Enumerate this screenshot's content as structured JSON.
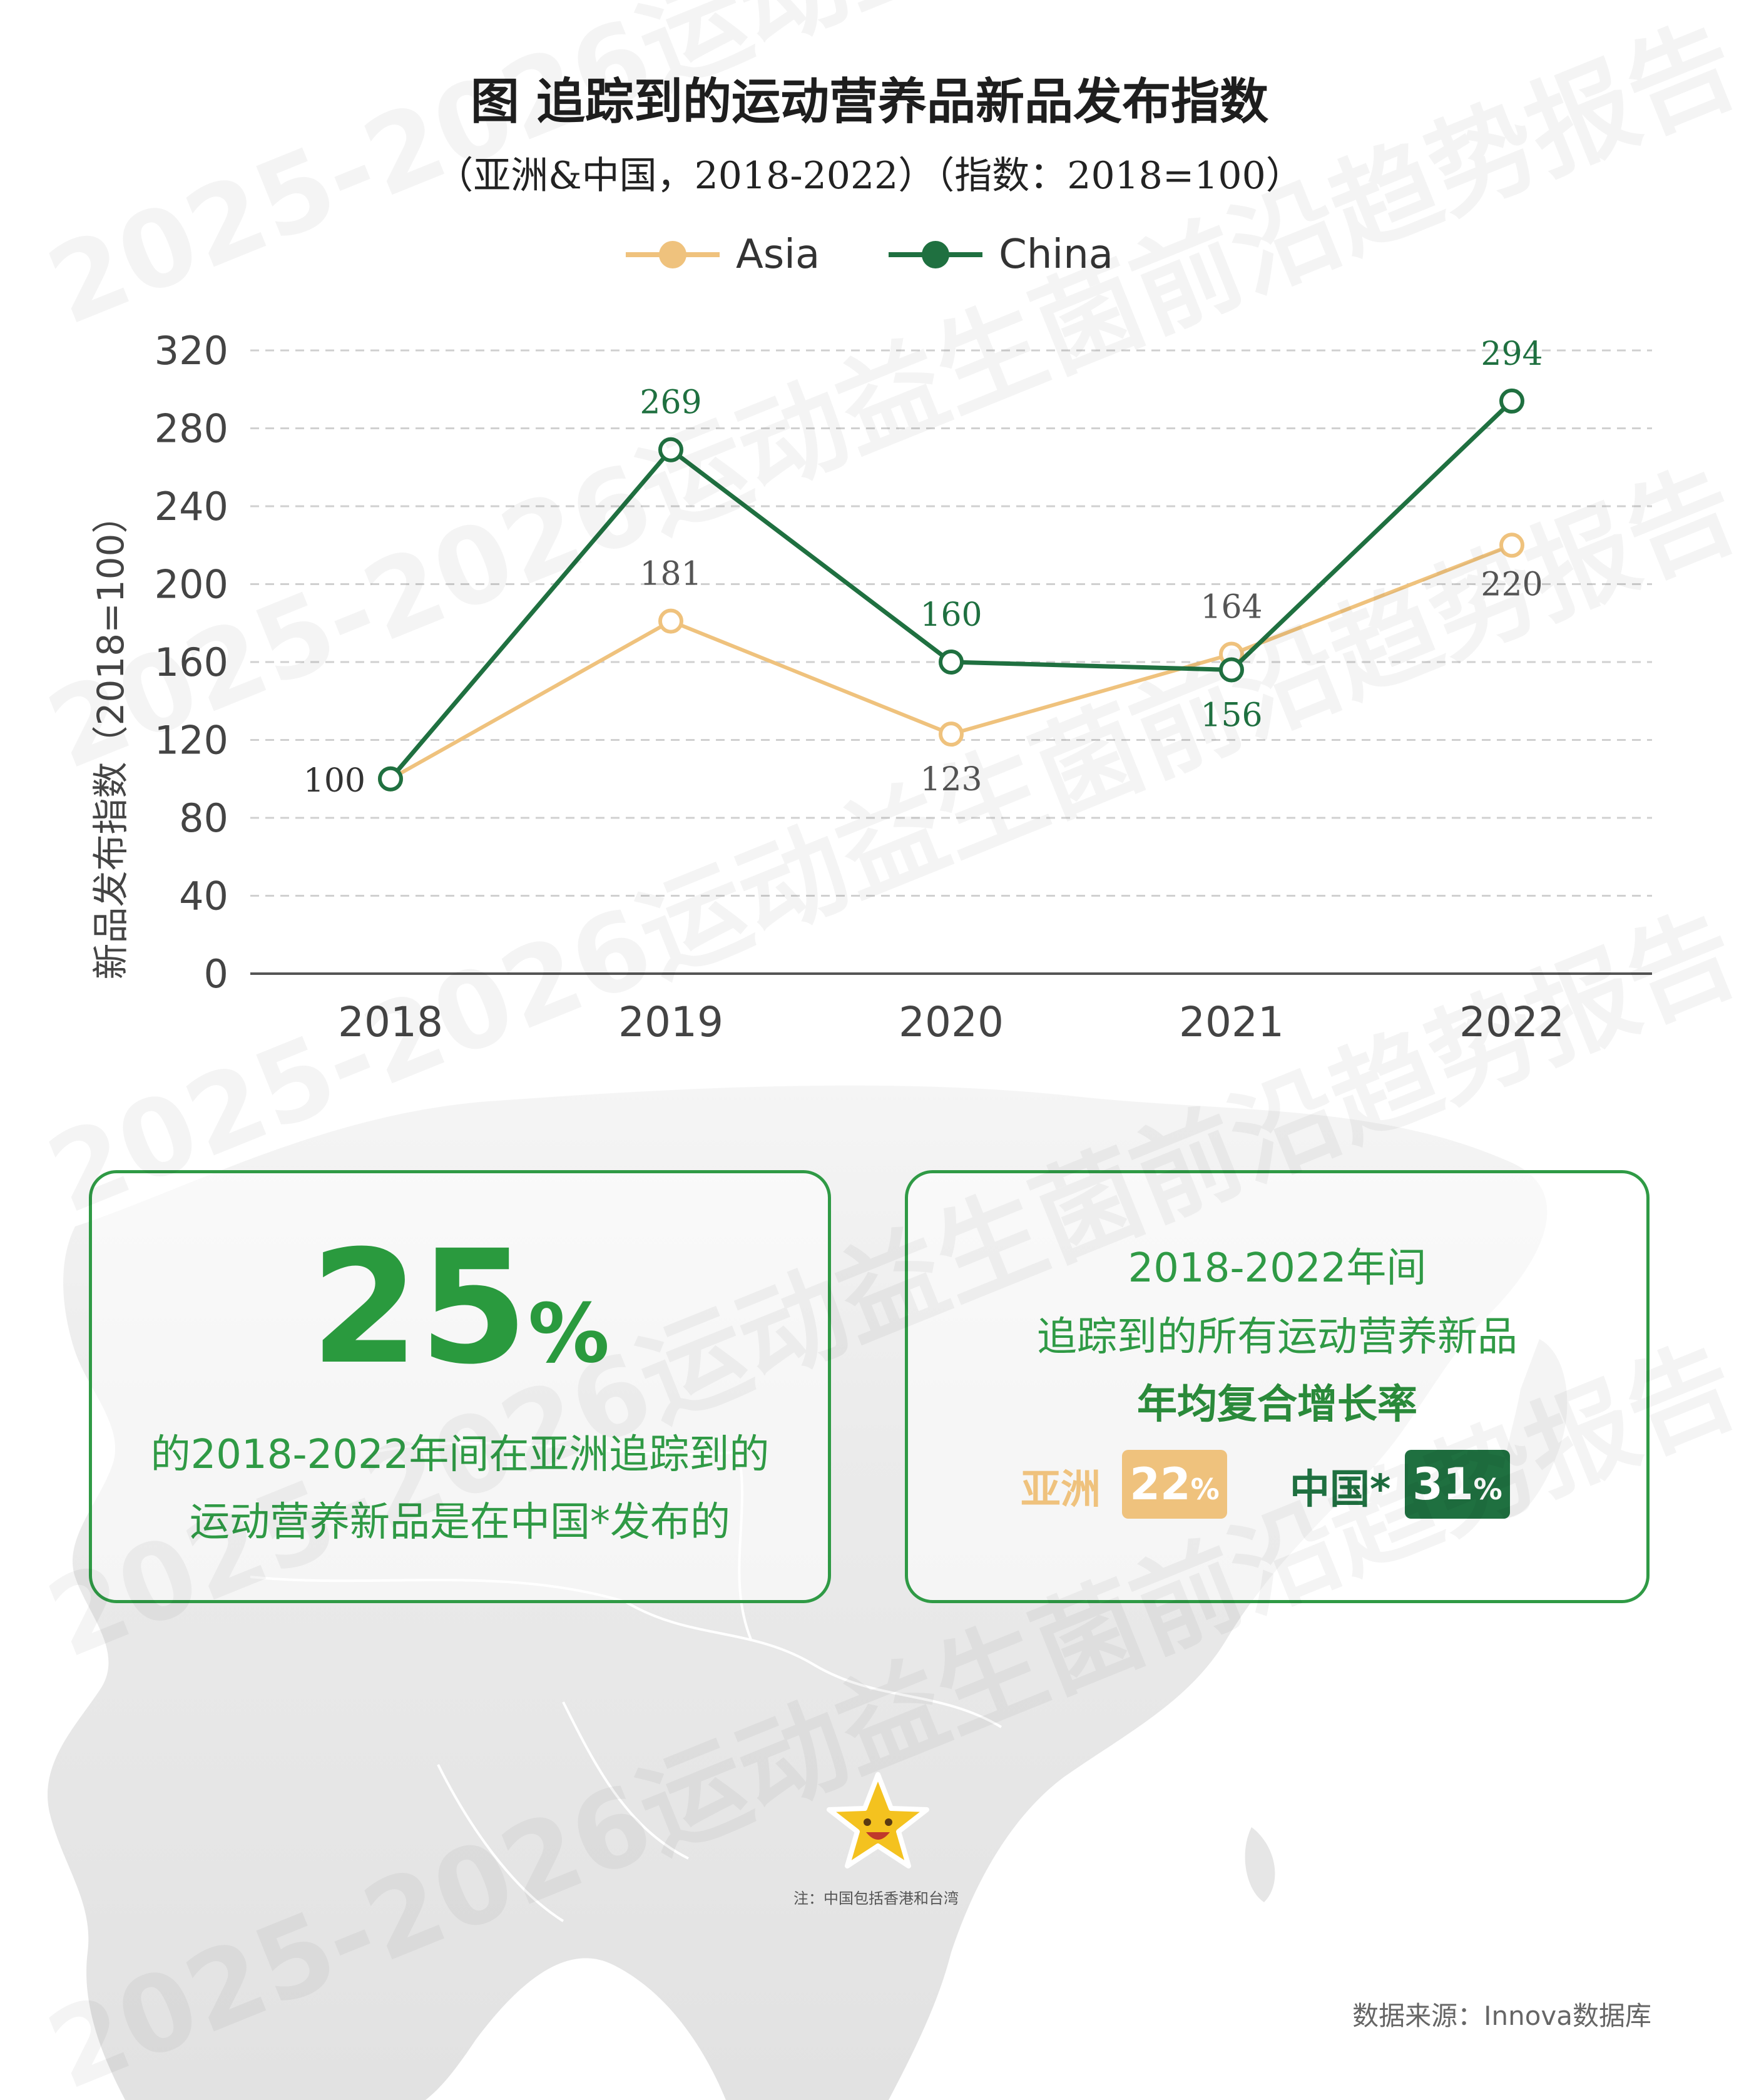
{
  "title": "图 追踪到的运动营养品新品发布指数",
  "subtitle": "（亚洲&中国，2018-2022）（指数：2018=100）",
  "colors": {
    "asia": "#efc27d",
    "china": "#1f7040",
    "accent_green": "#2f9a45",
    "grid": "#d0d0d0",
    "axis": "#555555"
  },
  "chart_data": {
    "type": "line",
    "title": "图 追踪到的运动营养品新品发布指数",
    "subtitle": "（亚洲&中国，2018-2022）（指数：2018=100）",
    "x": [
      "2018",
      "2019",
      "2020",
      "2021",
      "2022"
    ],
    "series": [
      {
        "name": "Asia",
        "values": [
          100,
          181,
          123,
          164,
          220
        ],
        "color": "#efc27d"
      },
      {
        "name": "China",
        "values": [
          100,
          269,
          160,
          156,
          294
        ],
        "color": "#1f7040"
      }
    ],
    "data_labels": {
      "Asia": [
        "",
        "181",
        "123",
        "164",
        "220"
      ],
      "China": [
        "100",
        "269",
        "160",
        "156",
        "294"
      ]
    },
    "ylabel": "新品发布指数（2018=100）",
    "xlabel": "",
    "ylim": [
      0,
      320
    ],
    "yticks": [
      "0",
      "40",
      "80",
      "120",
      "160",
      "200",
      "240",
      "280",
      "320"
    ],
    "grid": true,
    "legend_position": "top-center"
  },
  "cards": {
    "left": {
      "big_number": "25",
      "big_suffix": "%",
      "line1": "的2018-2022年间在亚洲追踪到的",
      "line2": "运动营养新品是在中国*发布的"
    },
    "right": {
      "line1": "2018-2022年间",
      "line2": "追踪到的所有运动营养新品",
      "line3": "年均复合增长率",
      "asia_label": "亚洲",
      "asia_value": "22",
      "asia_suffix": "%",
      "china_label": "中国*",
      "china_value": "31",
      "china_suffix": "%"
    }
  },
  "icons": {
    "mascot": "star-mascot-icon"
  },
  "note": "注：中国包括香港和台湾",
  "source": "数据来源：Innova数据库",
  "watermark": "2025-2026运动益生菌前沿趋势报告"
}
